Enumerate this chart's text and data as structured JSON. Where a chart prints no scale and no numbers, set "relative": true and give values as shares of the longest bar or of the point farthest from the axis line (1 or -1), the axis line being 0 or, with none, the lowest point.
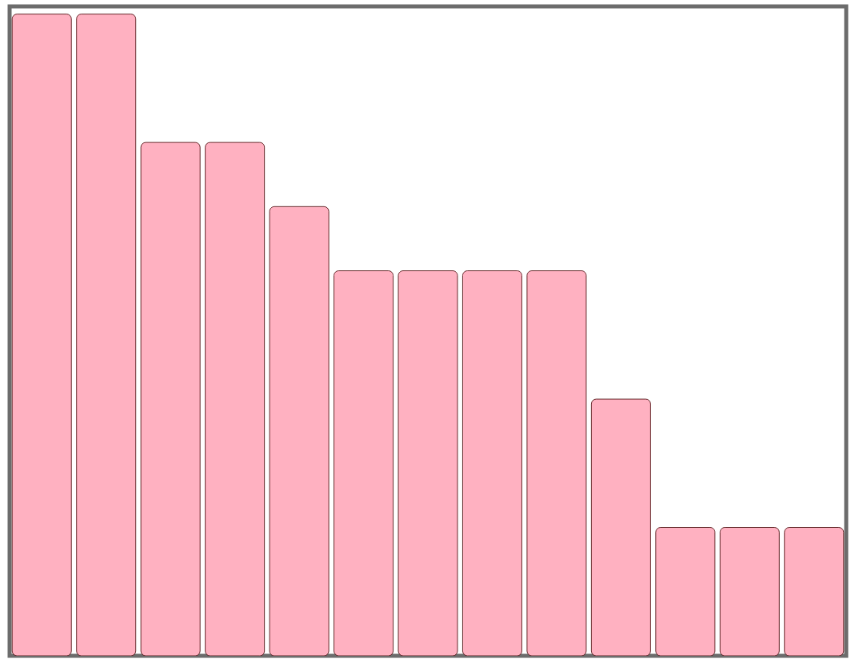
{
  "chart_data": {
    "type": "bar",
    "relative": true,
    "color": "#ffb1c1",
    "categories": [
      null,
      null,
      null,
      null,
      null,
      null,
      null,
      null,
      null,
      null,
      null,
      null,
      null
    ],
    "values": [
      1,
      1,
      0.8,
      0.8,
      0.7,
      0.6,
      0.6,
      0.6,
      0.6,
      0.4,
      0.2,
      0.2,
      0.2
    ]
  }
}
